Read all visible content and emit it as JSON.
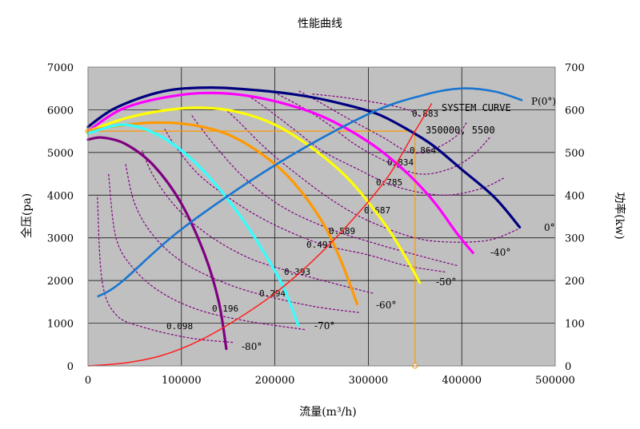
{
  "chart_data": {
    "type": "line",
    "title": "性能曲线",
    "xlabel": "流量(m³/h)",
    "ylabel": "全压(pa)",
    "y2label": "功率(kw)",
    "xlim": [
      0,
      500000
    ],
    "ylim": [
      0,
      7000
    ],
    "y2lim": [
      0,
      700
    ],
    "x_ticks": [
      "0",
      "100000",
      "200000",
      "300000",
      "400000",
      "500000"
    ],
    "y_ticks": [
      "0",
      "1000",
      "2000",
      "3000",
      "4000",
      "5000",
      "6000",
      "7000"
    ],
    "y2_ticks": [
      "0",
      "100",
      "200",
      "300",
      "400",
      "500",
      "600",
      "700"
    ],
    "grid": true,
    "plot_background": "#c0c0c0",
    "pressure_series": [
      {
        "name": "0°",
        "color": "#000080",
        "x": [
          0,
          30000,
          80000,
          130000,
          180000,
          230000,
          270000,
          310000,
          345000,
          370000,
          400000,
          435000,
          462000
        ],
        "y": [
          5600,
          6050,
          6430,
          6520,
          6460,
          6330,
          6150,
          5900,
          5500,
          5150,
          4600,
          3950,
          3250
        ]
      },
      {
        "name": "-40°",
        "color": "#ff00ff",
        "x": [
          0,
          40000,
          100000,
          150000,
          200000,
          250000,
          300000,
          340000,
          370000,
          395000,
          412000
        ],
        "y": [
          5500,
          6050,
          6350,
          6380,
          6200,
          5850,
          5250,
          4550,
          3850,
          3100,
          2650
        ]
      },
      {
        "name": "-50°",
        "color": "#ffff00",
        "x": [
          0,
          40000,
          80000,
          120000,
          160000,
          200000,
          240000,
          280000,
          320000,
          345000,
          355000
        ],
        "y": [
          5500,
          5800,
          5980,
          6050,
          5950,
          5650,
          5100,
          4350,
          3250,
          2350,
          1950
        ]
      },
      {
        "name": "-60°",
        "color": "#ff9900",
        "x": [
          0,
          30000,
          70000,
          110000,
          150000,
          190000,
          220000,
          250000,
          270000,
          288000
        ],
        "y": [
          5500,
          5620,
          5700,
          5650,
          5420,
          4900,
          4300,
          3400,
          2500,
          1450
        ]
      },
      {
        "name": "-70°",
        "color": "#33ffff",
        "x": [
          0,
          40000,
          80000,
          120000,
          160000,
          190000,
          210000,
          225000
        ],
        "y": [
          5450,
          5650,
          5350,
          4650,
          3600,
          2600,
          1800,
          950
        ]
      },
      {
        "name": "-80°",
        "color": "#800080",
        "x": [
          0,
          15000,
          40000,
          70000,
          100000,
          125000,
          140000,
          148000
        ],
        "y": [
          5300,
          5350,
          5200,
          4700,
          3800,
          2600,
          1500,
          400
        ]
      }
    ],
    "power_series": {
      "name": "P(0°)",
      "color": "#1a75cf",
      "x": [
        10000,
        35000,
        100000,
        200000,
        300000,
        360000,
        400000,
        435000,
        465000
      ],
      "y": [
        162,
        195,
        320,
        470,
        590,
        635,
        650,
        643,
        622
      ]
    },
    "system_curve": {
      "name": "SYSTEM CURVE",
      "color": "#ff2020",
      "x": [
        0,
        40000,
        80000,
        120000,
        160000,
        200000,
        240000,
        280000,
        320000,
        350000,
        368000
      ],
      "y": [
        0,
        70,
        250,
        600,
        1100,
        1700,
        2450,
        3350,
        4400,
        5500,
        6150
      ]
    },
    "efficiency_curves": [
      {
        "label": "0.883",
        "x": [
          355000,
          345000,
          325000,
          300000,
          270000,
          240000
        ],
        "y": [
          5850,
          5980,
          6100,
          6200,
          6300,
          6370
        ]
      },
      {
        "label": "0.864",
        "x": [
          405000,
          395000,
          372000,
          345000,
          316000,
          278000,
          250000,
          225000
        ],
        "y": [
          5700,
          5400,
          5100,
          5000,
          5350,
          5800,
          6150,
          6450
        ]
      },
      {
        "label": "0.834",
        "x": [
          430000,
          410000,
          385000,
          353000,
          318000,
          285000,
          258000,
          230000,
          200000
        ],
        "y": [
          5350,
          4900,
          4600,
          4500,
          4800,
          5200,
          5650,
          6050,
          6400
        ]
      },
      {
        "label": "0.785",
        "x": [
          445000,
          420000,
          380000,
          330000,
          285000,
          250000,
          220000,
          190000,
          170000
        ],
        "y": [
          4400,
          4150,
          4000,
          4200,
          4650,
          5050,
          5550,
          6050,
          6350
        ]
      },
      {
        "label": "0.687",
        "x": [
          460000,
          430000,
          390000,
          350000,
          300000,
          260000,
          220000,
          190000,
          160000,
          145000
        ],
        "y": [
          3200,
          2950,
          2900,
          3000,
          3400,
          3900,
          4550,
          5100,
          5750,
          6050
        ]
      },
      {
        "label": "0.589",
        "x": [
          395000,
          360000,
          310000,
          260000,
          210000,
          170000,
          140000,
          120000,
          110000
        ],
        "y": [
          2350,
          2550,
          2850,
          3200,
          3700,
          4350,
          5050,
          5600,
          5900
        ]
      },
      {
        "label": "0.491",
        "x": [
          382000,
          340000,
          300000,
          250000,
          200000,
          160000,
          120000,
          95000,
          82000
        ],
        "y": [
          2200,
          2350,
          2600,
          2850,
          3300,
          3800,
          4450,
          5100,
          5550
        ]
      },
      {
        "label": "0.393",
        "x": [
          305000,
          260000,
          210000,
          170000,
          130000,
          95000,
          70000,
          58000
        ],
        "y": [
          1700,
          1950,
          2250,
          2550,
          3050,
          3700,
          4450,
          5050
        ]
      },
      {
        "label": "0.294",
        "x": [
          290000,
          240000,
          180000,
          140000,
          100000,
          70000,
          50000,
          40000
        ],
        "y": [
          1250,
          1400,
          1700,
          2000,
          2450,
          3050,
          3800,
          4750
        ]
      },
      {
        "label": "0.196",
        "x": [
          232000,
          170000,
          120000,
          80000,
          50000,
          30000,
          22000
        ],
        "y": [
          850,
          1050,
          1300,
          1700,
          2250,
          3000,
          4500
        ]
      },
      {
        "label": "0.098",
        "x": [
          155000,
          110000,
          60000,
          30000,
          15000,
          10000
        ],
        "y": [
          550,
          650,
          900,
          1200,
          2000,
          4000
        ]
      }
    ],
    "operating_point": {
      "label": "350000, 5500",
      "x": 350000,
      "y": 5500,
      "color": "#ff9900"
    },
    "labels": {
      "system_curve": "SYSTEM CURVE",
      "power": "P(0°)"
    }
  }
}
